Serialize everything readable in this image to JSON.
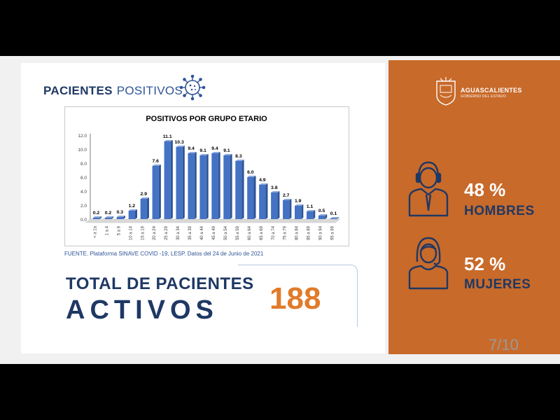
{
  "header": {
    "title_bold": "PACIENTES",
    "title_light": "POSITIVOS",
    "icon": "virus-icon"
  },
  "chart_data": {
    "type": "bar",
    "title": "POSITIVOS POR GRUPO ETARIO",
    "categories": [
      "< a 1a",
      "1 a 4",
      "5 a 9",
      "10 a 14",
      "15 a 19",
      "20 a 24",
      "25 a 29",
      "30 a 34",
      "35 a 39",
      "40 a 44",
      "45 a 49",
      "50 a 54",
      "55 a 59",
      "60 a 64",
      "65 a 69",
      "70 a 74",
      "75 a 79",
      "80 a 84",
      "85 a 89",
      "90 a 94",
      "95 a 99"
    ],
    "values": [
      0.2,
      0.2,
      0.3,
      1.2,
      2.9,
      7.6,
      11.1,
      10.3,
      9.4,
      9.1,
      9.4,
      9.1,
      8.3,
      6.0,
      4.9,
      3.8,
      2.7,
      1.9,
      1.1,
      0.5,
      0.1
    ],
    "value_labels": [
      "0.2",
      "0.2",
      "0.3",
      "1.2",
      "2.9",
      "7.6",
      "11.1",
      "10.3",
      "9.4",
      "9.1",
      "9.4",
      "9.1",
      "8.3",
      "6.0",
      "4.9",
      "3.8",
      "2.7",
      "1.9",
      "1.1",
      "0.5",
      "0.1"
    ],
    "ylim": [
      0,
      12
    ],
    "yticks": [
      "0.0",
      "2.0",
      "4.0",
      "6.0",
      "8.0",
      "10.0",
      "12.0"
    ],
    "bar_color": "#4472c4",
    "grid": false,
    "legend": "none"
  },
  "source": "FUENTE. Plataforma SINAVE COVID -19, LESP. Datos del 24 de Junio de 2021",
  "total": {
    "label_line1": "TOTAL DE PACIENTES",
    "label_line2": "ACTIVOS",
    "value": "188"
  },
  "sidebar": {
    "logo_line1": "AGUASCALIENTES",
    "logo_line2": "GOBIERNO DEL ESTADO",
    "men_percent": "48 %",
    "men_label": "HOMBRES",
    "women_percent": "52 %",
    "women_label": "MUJERES",
    "men_icon": "man-icon",
    "women_icon": "woman-icon",
    "background_color": "#c86a2a"
  },
  "page_number": "7/10"
}
